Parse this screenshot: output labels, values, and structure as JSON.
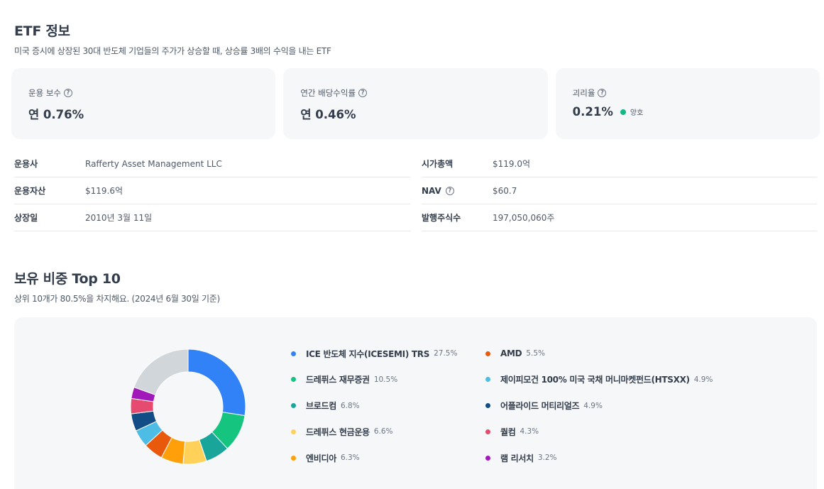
{
  "etf_info": {
    "title": "ETF 정보",
    "subtitle": "미국 증시에 상장된 30대 반도체 기업들의 주가가 상승할 때, 상승률 3배의 수익을 내는 ETF",
    "help_glyph": "?",
    "cards": [
      {
        "label": "운용 보수",
        "value": "연 0.76%"
      },
      {
        "label": "연간 배당수익률",
        "value": "연 0.46%"
      },
      {
        "label": "괴리율",
        "value": "0.21%",
        "status": "양호",
        "status_color": "#12b886"
      }
    ],
    "left_rows": [
      {
        "key": "운용사",
        "value": "Rafferty Asset Management LLC"
      },
      {
        "key": "운용자산",
        "value": "$119.6억"
      },
      {
        "key": "상장일",
        "value": "2010년 3월 11일"
      }
    ],
    "right_rows": [
      {
        "key": "시가총액",
        "value": "$119.0억"
      },
      {
        "key": "NAV",
        "value": "$60.7"
      },
      {
        "key": "발행주식수",
        "value": "197,050,060주"
      }
    ]
  },
  "holdings": {
    "title": "보유 비중 Top 10",
    "subtitle": "상위 10개가 80.5%을 차지해요. (2024년 6월 30일 기준)",
    "items": [
      {
        "name": "ICE 반도체 지수(ICESEMI) TRS",
        "pct": "27.5%",
        "color": "#3182f6"
      },
      {
        "name": "드레퓌스 재무증권",
        "pct": "10.5%",
        "color": "#15c47e"
      },
      {
        "name": "브로드컴",
        "pct": "6.8%",
        "color": "#1aa59a"
      },
      {
        "name": "드레퓌스 현금운용",
        "pct": "6.6%",
        "color": "#ffd158"
      },
      {
        "name": "엔비디아",
        "pct": "6.3%",
        "color": "#ff9f0a"
      },
      {
        "name": "AMD",
        "pct": "5.5%",
        "color": "#e8590c"
      },
      {
        "name": "제이피모건 100% 미국 국채 머니마켓펀드(HTSXX)",
        "pct": "4.9%",
        "color": "#4dbde5"
      },
      {
        "name": "어플라이드 머티리얼즈",
        "pct": "4.9%",
        "color": "#124d86"
      },
      {
        "name": "퀄컴",
        "pct": "4.3%",
        "color": "#e64a6e"
      },
      {
        "name": "램 리서치",
        "pct": "3.2%",
        "color": "#a119b8"
      }
    ],
    "others_pct": 19.5,
    "others_color": "#d1d6db"
  }
}
